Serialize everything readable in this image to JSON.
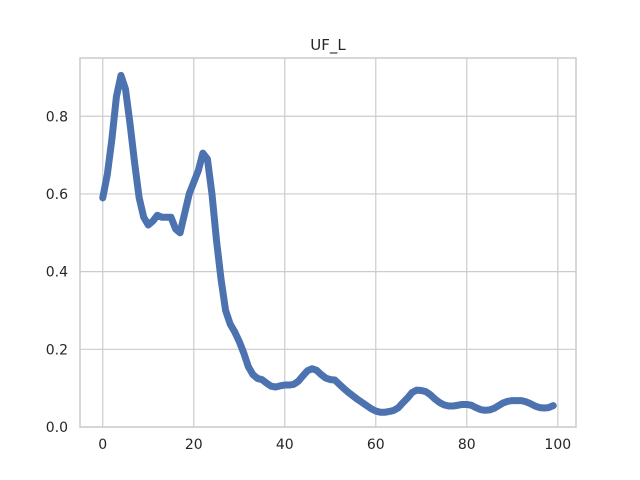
{
  "chart_data": {
    "type": "line",
    "title": "UF_L",
    "xlabel": "",
    "ylabel": "",
    "xlim": [
      -5,
      104
    ],
    "ylim": [
      0,
      0.95
    ],
    "grid": true,
    "xticks": [
      0,
      20,
      40,
      60,
      80,
      100
    ],
    "yticks": [
      0.0,
      0.2,
      0.4,
      0.6,
      0.8
    ],
    "xtick_labels": [
      "0",
      "20",
      "40",
      "60",
      "80",
      "100"
    ],
    "ytick_labels": [
      "0.0",
      "0.2",
      "0.4",
      "0.6",
      "0.8"
    ],
    "series": [
      {
        "color": "#4c72b0",
        "x": [
          0,
          1,
          2,
          3,
          4,
          5,
          6,
          7,
          8,
          9,
          10,
          11,
          12,
          13,
          14,
          15,
          16,
          17,
          18,
          19,
          20,
          21,
          22,
          23,
          24,
          25,
          26,
          27,
          28,
          29,
          30,
          31,
          32,
          33,
          34,
          35,
          36,
          37,
          38,
          39,
          40,
          41,
          42,
          43,
          44,
          45,
          46,
          47,
          48,
          49,
          50,
          51,
          52,
          53,
          54,
          55,
          56,
          57,
          58,
          59,
          60,
          61,
          62,
          63,
          64,
          65,
          66,
          67,
          68,
          69,
          70,
          71,
          72,
          73,
          74,
          75,
          76,
          77,
          78,
          79,
          80,
          81,
          82,
          83,
          84,
          85,
          86,
          87,
          88,
          89,
          90,
          91,
          92,
          93,
          94,
          95,
          96,
          97,
          98,
          99
        ],
        "values": [
          0.59,
          0.65,
          0.74,
          0.85,
          0.905,
          0.87,
          0.78,
          0.68,
          0.59,
          0.54,
          0.52,
          0.53,
          0.545,
          0.54,
          0.54,
          0.54,
          0.51,
          0.5,
          0.55,
          0.6,
          0.63,
          0.66,
          0.705,
          0.69,
          0.6,
          0.48,
          0.38,
          0.3,
          0.265,
          0.245,
          0.22,
          0.19,
          0.155,
          0.135,
          0.125,
          0.122,
          0.113,
          0.105,
          0.103,
          0.106,
          0.108,
          0.108,
          0.11,
          0.118,
          0.132,
          0.145,
          0.15,
          0.146,
          0.135,
          0.126,
          0.122,
          0.121,
          0.11,
          0.099,
          0.089,
          0.08,
          0.071,
          0.063,
          0.055,
          0.047,
          0.041,
          0.038,
          0.038,
          0.04,
          0.043,
          0.05,
          0.063,
          0.075,
          0.089,
          0.095,
          0.094,
          0.091,
          0.083,
          0.072,
          0.063,
          0.057,
          0.054,
          0.054,
          0.056,
          0.058,
          0.058,
          0.056,
          0.05,
          0.045,
          0.043,
          0.044,
          0.048,
          0.055,
          0.062,
          0.066,
          0.068,
          0.068,
          0.068,
          0.065,
          0.06,
          0.054,
          0.05,
          0.049,
          0.05,
          0.055
        ]
      }
    ]
  }
}
